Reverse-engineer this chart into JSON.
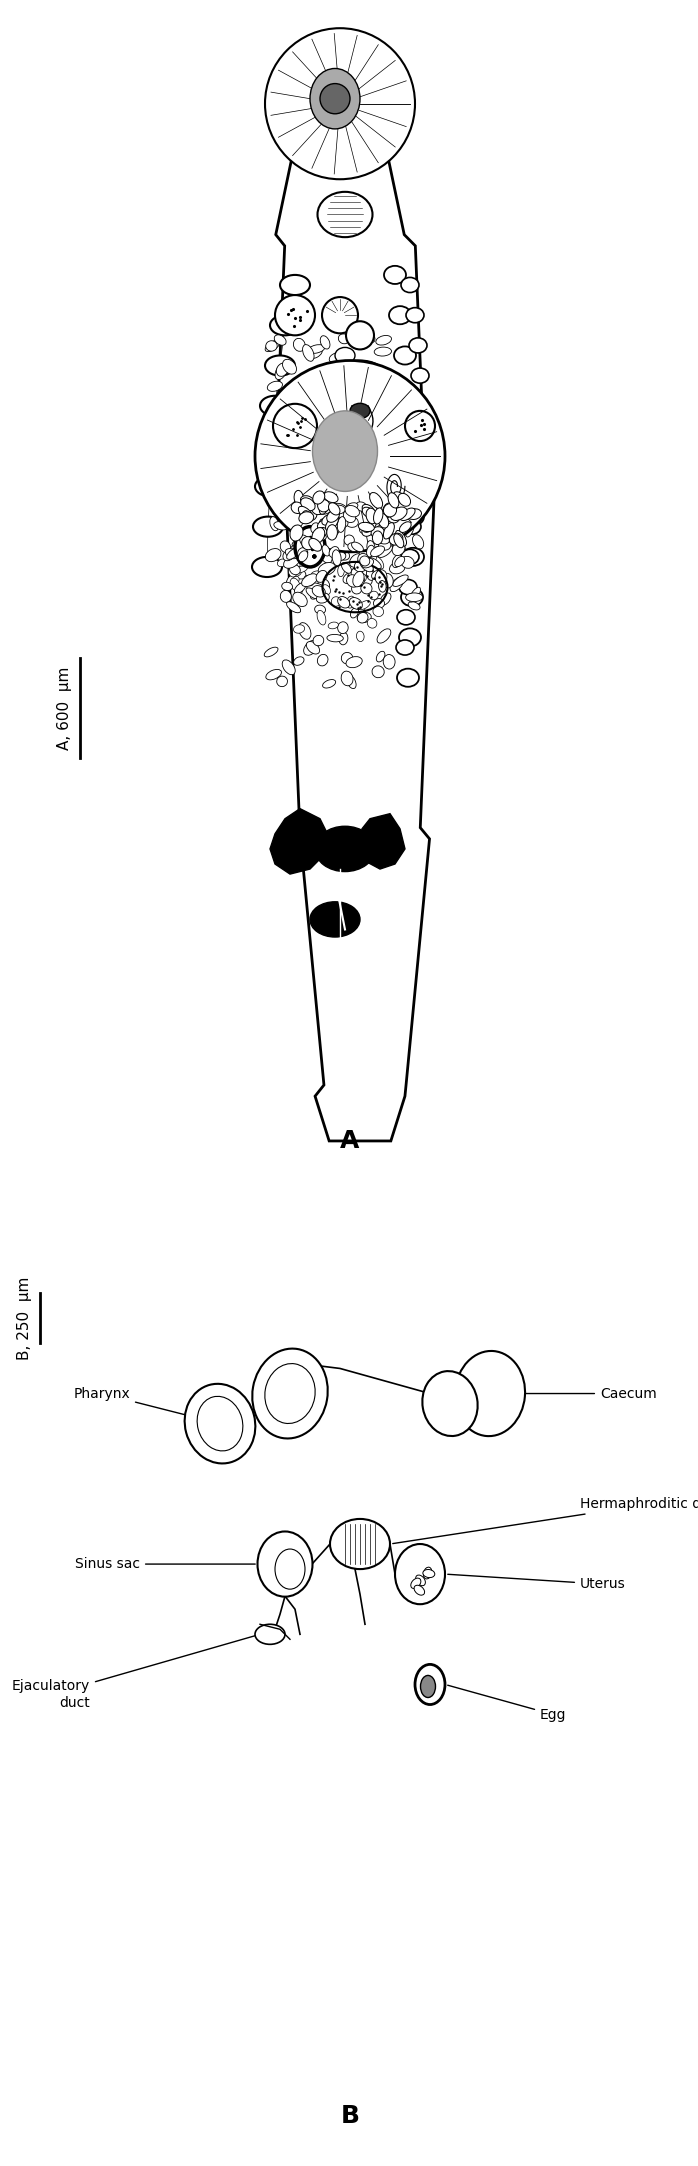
{
  "figure_width": 6.98,
  "figure_height": 21.66,
  "dpi": 100,
  "bg_color": "#ffffff",
  "panel_A_label": "A",
  "panel_B_label": "B",
  "scale_bar_A_text": "A, 600  μm",
  "scale_bar_B_text": "B, 250  μm",
  "label_pharynx": "Pharynx",
  "label_caecum": "Caecum",
  "label_hermaphroditic_duct": "Hermaphroditic duct",
  "label_sinus_sac": "Sinus sac",
  "label_uterus": "Uterus",
  "label_ejaculatory_duct": "Ejaculatory\nduct",
  "label_egg": "Egg",
  "body_color": "#ffffff",
  "body_edge_color": "#000000",
  "gray_fill": "#c8c8c8",
  "black_fill": "#000000",
  "light_gray": "#d8d8d8"
}
